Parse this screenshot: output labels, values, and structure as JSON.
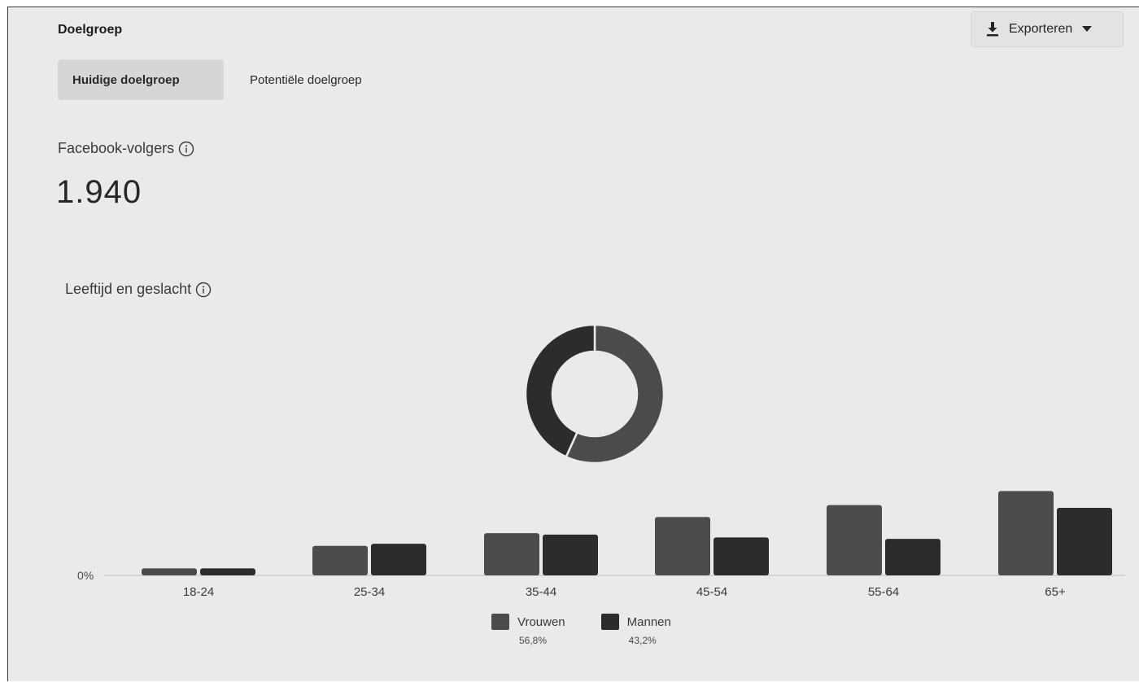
{
  "header": {
    "title": "Doelgroep",
    "export_label": "Exporteren"
  },
  "tabs": [
    {
      "label": "Huidige doelgroep",
      "active": true
    },
    {
      "label": "Potentiële doelgroep",
      "active": false
    }
  ],
  "followers": {
    "label": "Facebook-volgers",
    "value": "1.940"
  },
  "colors": {
    "background": "#e9eaeb",
    "women": "#4a4b4d",
    "men": "#2b2c2e",
    "axis": "#bdbec0"
  },
  "icons": [
    "download-icon",
    "caret-down-icon",
    "info-icon"
  ],
  "chart_data": [
    {
      "type": "pie",
      "title": "Leeftijd en geslacht",
      "donut": true,
      "labels": [
        "Vrouwen",
        "Mannen"
      ],
      "values": [
        56.8,
        43.2
      ],
      "value_labels": [
        "56,8%",
        "43,2%"
      ]
    },
    {
      "type": "bar",
      "categories": [
        "18-24",
        "25-34",
        "35-44",
        "45-54",
        "55-64",
        "65+"
      ],
      "series": [
        {
          "name": "Vrouwen",
          "values": [
            1.0,
            4.2,
            6.0,
            8.3,
            10.0,
            12.0
          ]
        },
        {
          "name": "Mannen",
          "values": [
            1.0,
            4.5,
            5.8,
            5.4,
            5.2,
            9.6
          ]
        }
      ],
      "y_tick_labels": [
        "0%"
      ],
      "ylim": [
        0,
        12.5
      ],
      "legend_position": "bottom"
    }
  ]
}
